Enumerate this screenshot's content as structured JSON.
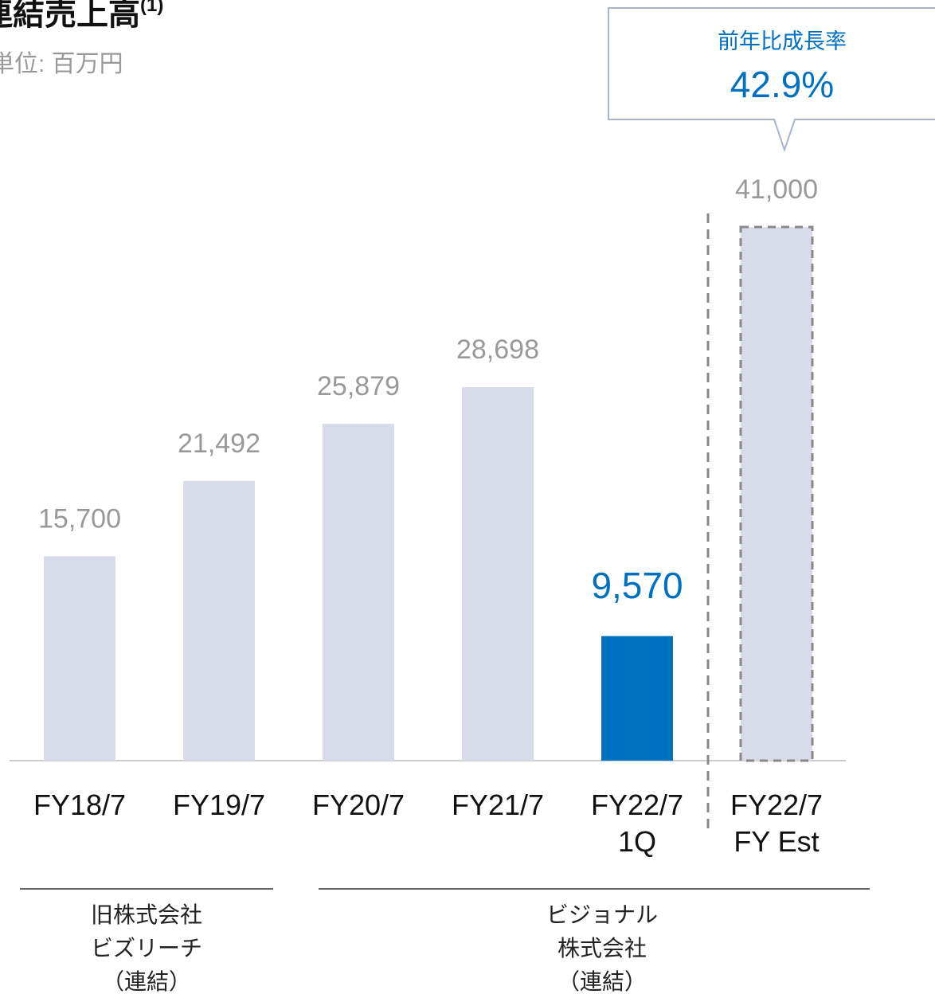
{
  "chart_data": {
    "type": "bar",
    "title": "連結売上高",
    "title_note": "(1)",
    "subtitle": "単位: 百万円",
    "categories": [
      "FY18/7",
      "FY19/7",
      "FY20/7",
      "FY21/7",
      "FY22/7\n1Q",
      "FY22/7\nFY Est"
    ],
    "values": [
      15700,
      21492,
      25879,
      28698,
      9570,
      41000
    ],
    "value_labels": [
      "15,700",
      "21,492",
      "25,879",
      "28,698",
      "9,570",
      "41,000"
    ],
    "colors": [
      "#d8dce9",
      "#d8dce9",
      "#d8dce9",
      "#d8dce9",
      "#0070c0",
      "#d8dce9"
    ],
    "styles": [
      "solid",
      "solid",
      "solid",
      "solid",
      "highlight",
      "dashed"
    ],
    "ylim": [
      0,
      41000
    ],
    "callout": {
      "label": "前年比成長率",
      "value": "42.9%"
    },
    "groups": [
      "旧株式会社\nビズリーチ\n（連結）",
      "ビジョナル\n株式会社\n（連結）"
    ]
  }
}
